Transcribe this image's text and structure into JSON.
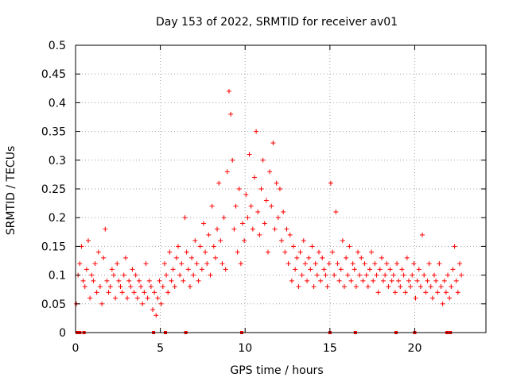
{
  "chart_data": {
    "type": "scatter",
    "title": "Day 153 of 2022, SRMTID for receiver av01",
    "xlabel": "GPS time / hours",
    "ylabel": "SRMTID / TECUs",
    "xlim": [
      0,
      24.2
    ],
    "ylim": [
      0,
      0.5
    ],
    "xticks": [
      0,
      5,
      10,
      15,
      20
    ],
    "xtick_labels": [
      "0",
      "5",
      "10",
      "15",
      "20"
    ],
    "yticks": [
      0,
      0.05,
      0.1,
      0.15,
      0.2,
      0.25,
      0.3,
      0.35,
      0.4,
      0.45,
      0.5
    ],
    "ytick_labels": [
      "0",
      "0.05",
      "0.1",
      "0.15",
      "0.2",
      "0.25",
      "0.3",
      "0.35",
      "0.4",
      "0.45",
      "0.5"
    ],
    "grid": true,
    "marker": "+",
    "color": "#ff0000",
    "series": [
      {
        "name": "SRMTID",
        "x": [
          0.05,
          0.15,
          0.25,
          0.35,
          0.45,
          0.55,
          0.65,
          0.75,
          0.85,
          0.95,
          1.05,
          1.15,
          1.25,
          1.35,
          1.45,
          1.55,
          1.65,
          1.75,
          1.85,
          1.95,
          2.05,
          2.15,
          2.25,
          2.35,
          2.45,
          2.55,
          2.65,
          2.75,
          2.85,
          2.95,
          3.05,
          3.15,
          3.25,
          3.35,
          3.45,
          3.55,
          3.65,
          3.75,
          3.85,
          3.95,
          4.05,
          4.15,
          4.25,
          4.35,
          4.45,
          4.55,
          4.65,
          4.75,
          4.85,
          4.95,
          5.05,
          5.15,
          5.25,
          5.35,
          5.45,
          5.55,
          5.65,
          5.75,
          5.85,
          5.95,
          6.05,
          6.15,
          6.25,
          6.35,
          6.45,
          6.55,
          6.65,
          6.75,
          6.85,
          6.95,
          7.05,
          7.15,
          7.25,
          7.35,
          7.45,
          7.55,
          7.65,
          7.75,
          7.85,
          7.95,
          8.05,
          8.15,
          8.25,
          8.35,
          8.45,
          8.55,
          8.65,
          8.75,
          8.85,
          8.95,
          9.05,
          9.15,
          9.25,
          9.35,
          9.45,
          9.55,
          9.65,
          9.75,
          9.85,
          9.95,
          10.05,
          10.15,
          10.25,
          10.35,
          10.45,
          10.55,
          10.65,
          10.75,
          10.85,
          10.95,
          11.05,
          11.15,
          11.25,
          11.35,
          11.45,
          11.55,
          11.65,
          11.75,
          11.85,
          11.95,
          12.05,
          12.15,
          12.25,
          12.35,
          12.45,
          12.55,
          12.65,
          12.75,
          12.85,
          12.95,
          13.05,
          13.15,
          13.25,
          13.35,
          13.45,
          13.55,
          13.65,
          13.75,
          13.85,
          13.95,
          14.05,
          14.15,
          14.25,
          14.35,
          14.45,
          14.55,
          14.65,
          14.75,
          14.85,
          14.95,
          15.05,
          15.15,
          15.25,
          15.35,
          15.45,
          15.55,
          15.65,
          15.75,
          15.85,
          15.95,
          16.05,
          16.15,
          16.25,
          16.35,
          16.45,
          16.55,
          16.65,
          16.75,
          16.85,
          16.95,
          17.05,
          17.15,
          17.25,
          17.35,
          17.45,
          17.55,
          17.65,
          17.75,
          17.85,
          17.95,
          18.05,
          18.15,
          18.25,
          18.35,
          18.45,
          18.55,
          18.65,
          18.75,
          18.85,
          18.95,
          19.05,
          19.15,
          19.25,
          19.35,
          19.45,
          19.55,
          19.65,
          19.75,
          19.85,
          19.95,
          20.05,
          20.15,
          20.25,
          20.35,
          20.45,
          20.55,
          20.65,
          20.75,
          20.85,
          20.95,
          21.05,
          21.15,
          21.25,
          21.35,
          21.45,
          21.55,
          21.65,
          21.75,
          21.85,
          21.95,
          22.05,
          22.15,
          22.25,
          22.35,
          22.45,
          22.55,
          22.65,
          22.75
        ],
        "y": [
          0.05,
          0.1,
          0.12,
          0.15,
          0.09,
          0.08,
          0.11,
          0.16,
          0.06,
          0.1,
          0.09,
          0.12,
          0.07,
          0.14,
          0.08,
          0.05,
          0.13,
          0.18,
          0.09,
          0.07,
          0.08,
          0.11,
          0.1,
          0.06,
          0.12,
          0.09,
          0.08,
          0.07,
          0.1,
          0.13,
          0.06,
          0.09,
          0.08,
          0.11,
          0.07,
          0.1,
          0.06,
          0.09,
          0.08,
          0.05,
          0.07,
          0.12,
          0.06,
          0.09,
          0.08,
          0.04,
          0.07,
          0.03,
          0.06,
          0.09,
          0.05,
          0.08,
          0.12,
          0.1,
          0.07,
          0.14,
          0.09,
          0.11,
          0.08,
          0.13,
          0.15,
          0.1,
          0.12,
          0.09,
          0.2,
          0.14,
          0.11,
          0.08,
          0.13,
          0.1,
          0.16,
          0.12,
          0.09,
          0.15,
          0.11,
          0.19,
          0.14,
          0.12,
          0.17,
          0.1,
          0.22,
          0.15,
          0.13,
          0.18,
          0.26,
          0.16,
          0.12,
          0.2,
          0.11,
          0.28,
          0.42,
          0.38,
          0.3,
          0.18,
          0.22,
          0.14,
          0.25,
          0.12,
          0.19,
          0.16,
          0.24,
          0.2,
          0.31,
          0.22,
          0.18,
          0.27,
          0.35,
          0.21,
          0.17,
          0.25,
          0.3,
          0.19,
          0.23,
          0.14,
          0.28,
          0.22,
          0.33,
          0.18,
          0.26,
          0.2,
          0.25,
          0.16,
          0.21,
          0.14,
          0.18,
          0.12,
          0.17,
          0.09,
          0.15,
          0.11,
          0.13,
          0.08,
          0.14,
          0.1,
          0.16,
          0.12,
          0.09,
          0.13,
          0.11,
          0.15,
          0.08,
          0.12,
          0.1,
          0.14,
          0.09,
          0.13,
          0.11,
          0.1,
          0.08,
          0.12,
          0.26,
          0.14,
          0.1,
          0.21,
          0.12,
          0.09,
          0.11,
          0.16,
          0.08,
          0.13,
          0.1,
          0.15,
          0.09,
          0.12,
          0.11,
          0.08,
          0.14,
          0.1,
          0.13,
          0.09,
          0.12,
          0.1,
          0.08,
          0.11,
          0.14,
          0.09,
          0.12,
          0.1,
          0.07,
          0.11,
          0.13,
          0.09,
          0.1,
          0.12,
          0.08,
          0.11,
          0.09,
          0.1,
          0.07,
          0.12,
          0.09,
          0.08,
          0.11,
          0.1,
          0.07,
          0.13,
          0.09,
          0.08,
          0.1,
          0.12,
          0.06,
          0.09,
          0.11,
          0.08,
          0.17,
          0.1,
          0.07,
          0.09,
          0.12,
          0.08,
          0.06,
          0.1,
          0.09,
          0.07,
          0.12,
          0.08,
          0.05,
          0.09,
          0.07,
          0.1,
          0.06,
          0.08,
          0.11,
          0.15,
          0.09,
          0.07,
          0.12,
          0.1
        ]
      }
    ],
    "zero_marks_x": [
      0.1,
      0.25,
      0.5,
      4.6,
      5.3,
      6.5,
      9.8,
      15.0,
      16.5,
      18.9,
      20.0,
      21.9,
      22.1
    ]
  }
}
